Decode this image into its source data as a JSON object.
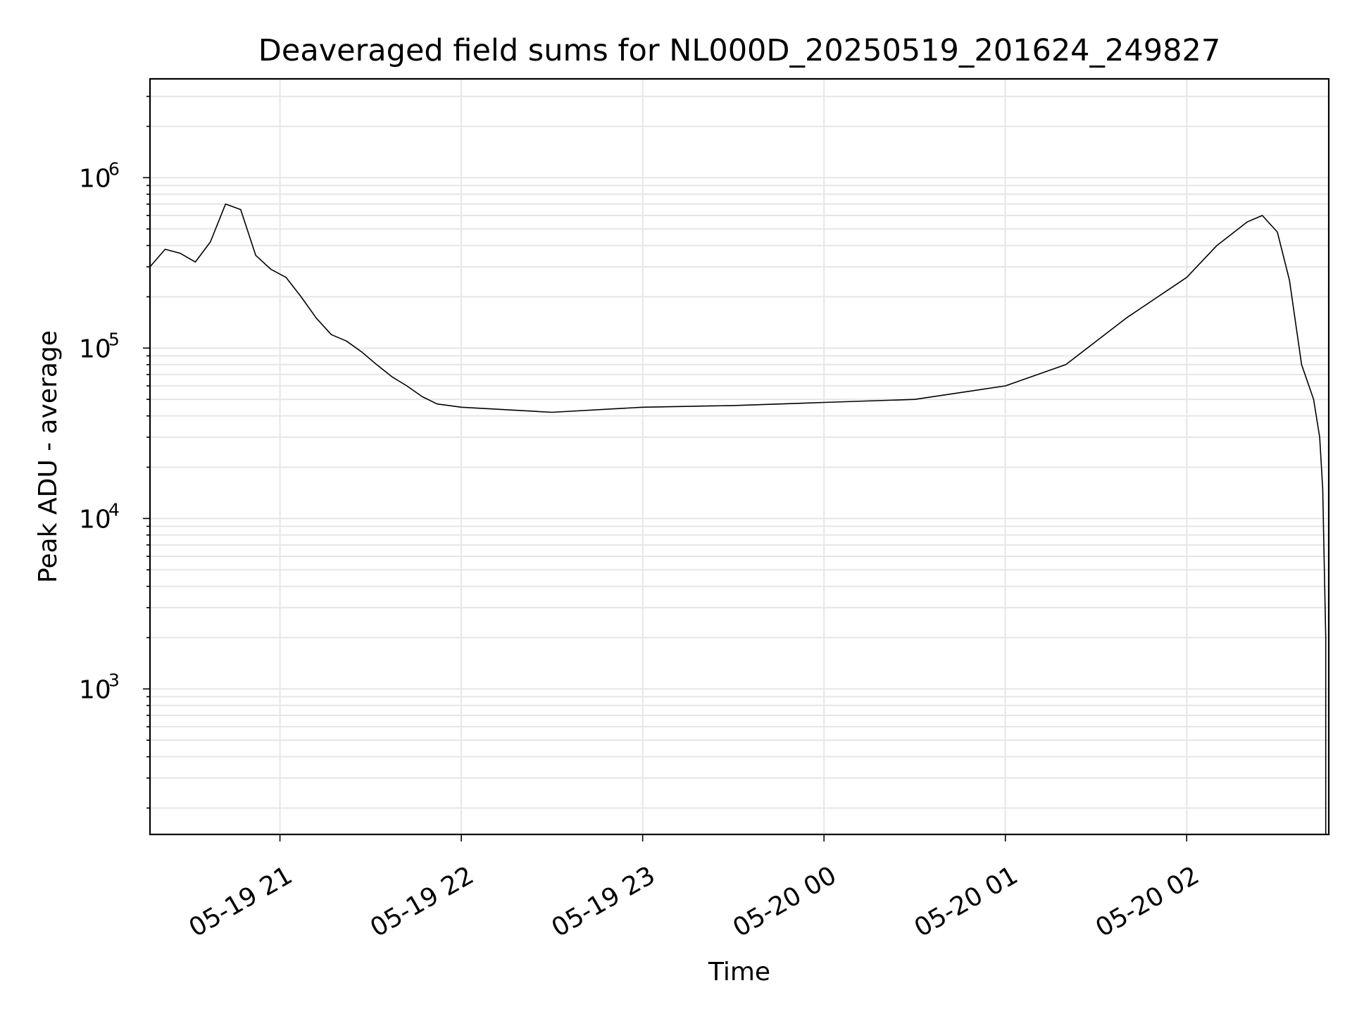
{
  "chart_data": {
    "type": "line",
    "title": "Deaveraged field sums for NL000D_20250519_201624_249827",
    "xlabel": "Time",
    "ylabel": "Peak ADU - average",
    "yscale": "log",
    "ylim": [
      140,
      3800000
    ],
    "xlim": [
      "2025-05-19 20:17",
      "2025-05-20 02:47"
    ],
    "grid": true,
    "line_color": "#000000",
    "x_ticks": [
      "2025-05-19 21:00",
      "2025-05-19 22:00",
      "2025-05-19 23:00",
      "2025-05-20 00:00",
      "2025-05-20 01:00",
      "2025-05-20 02:00"
    ],
    "x_tick_labels": [
      "05-19 21",
      "05-19 22",
      "05-19 23",
      "05-20 00",
      "05-20 01",
      "05-20 02"
    ],
    "y_ticks": [
      {
        "base": "10",
        "exp": "3",
        "value": 1000
      },
      {
        "base": "10",
        "exp": "4",
        "value": 10000
      },
      {
        "base": "10",
        "exp": "5",
        "value": 100000
      },
      {
        "base": "10",
        "exp": "6",
        "value": 1000000
      }
    ],
    "series": [
      {
        "x": [
          "2025-05-19 20:17",
          "2025-05-19 20:22",
          "2025-05-19 20:27",
          "2025-05-19 20:32",
          "2025-05-19 20:37",
          "2025-05-19 20:42",
          "2025-05-19 20:47",
          "2025-05-19 20:52",
          "2025-05-19 20:57",
          "2025-05-19 21:02",
          "2025-05-19 21:07",
          "2025-05-19 21:12",
          "2025-05-19 21:17",
          "2025-05-19 21:22",
          "2025-05-19 21:27",
          "2025-05-19 21:32",
          "2025-05-19 21:37",
          "2025-05-19 21:42",
          "2025-05-19 21:47",
          "2025-05-19 21:52",
          "2025-05-19 22:00",
          "2025-05-19 22:30",
          "2025-05-19 23:00",
          "2025-05-19 23:30",
          "2025-05-20 00:00",
          "2025-05-20 00:30",
          "2025-05-20 01:00",
          "2025-05-20 01:20",
          "2025-05-20 01:40",
          "2025-05-20 02:00",
          "2025-05-20 02:10",
          "2025-05-20 02:20",
          "2025-05-20 02:25",
          "2025-05-20 02:30",
          "2025-05-20 02:34",
          "2025-05-20 02:38",
          "2025-05-20 02:42",
          "2025-05-20 02:44",
          "2025-05-20 02:45",
          "2025-05-20 02:46",
          "2025-05-20 02:46"
        ],
        "y": [
          300000,
          380000,
          360000,
          320000,
          420000,
          700000,
          650000,
          350000,
          290000,
          260000,
          200000,
          150000,
          120000,
          110000,
          95000,
          80000,
          68000,
          60000,
          52000,
          47000,
          45000,
          42000,
          45000,
          46000,
          48000,
          50000,
          60000,
          80000,
          150000,
          260000,
          400000,
          550000,
          600000,
          480000,
          250000,
          80000,
          50000,
          30000,
          15000,
          2000,
          140
        ]
      }
    ]
  }
}
